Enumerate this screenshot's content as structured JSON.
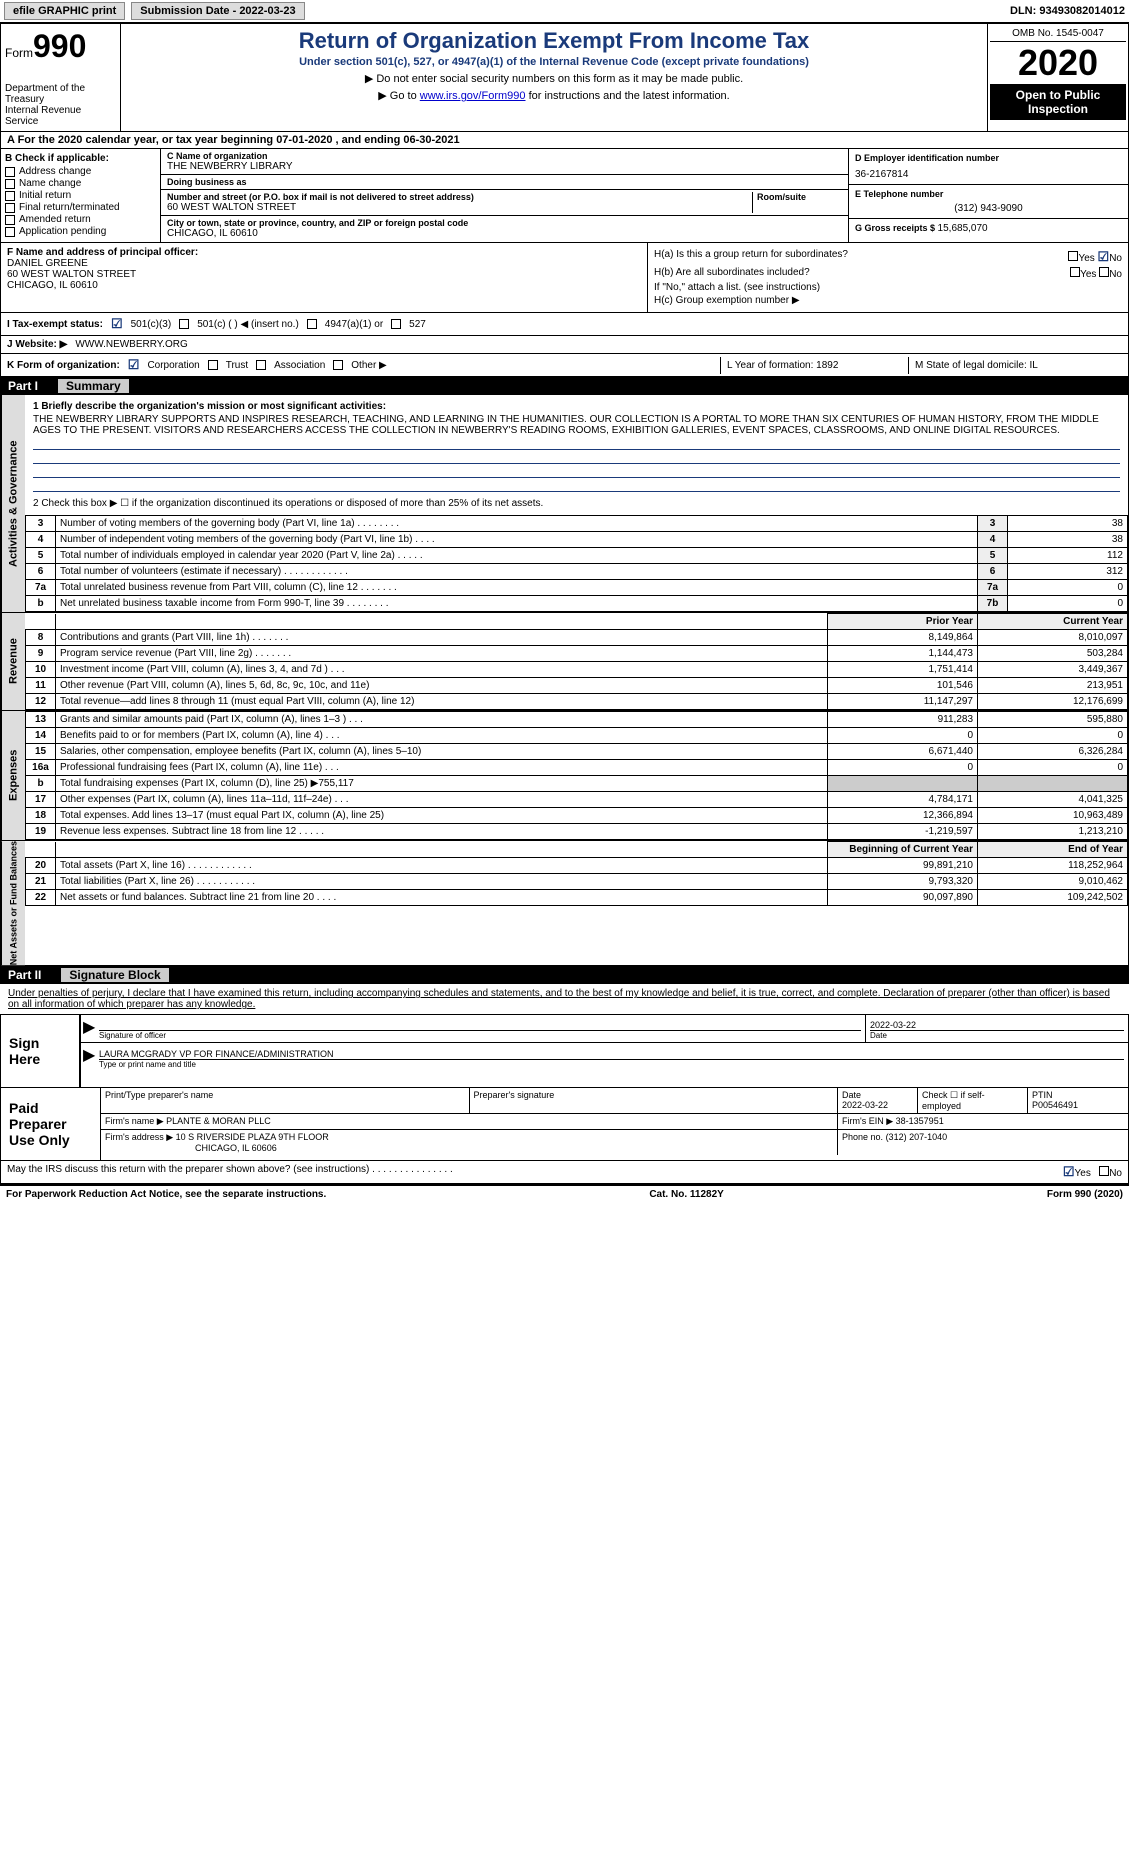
{
  "topbar": {
    "efile": "efile GRAPHIC print",
    "submit_label": "Submission Date - 2022-03-23",
    "dln_label": "DLN: 93493082014012"
  },
  "header": {
    "form_word": "Form",
    "form_num": "990",
    "dept1": "Department of the Treasury",
    "dept2": "Internal Revenue Service",
    "title": "Return of Organization Exempt From Income Tax",
    "subtitle": "Under section 501(c), 527, or 4947(a)(1) of the Internal Revenue Code (except private foundations)",
    "note1": "▶ Do not enter social security numbers on this form as it may be made public.",
    "note2_pre": "▶ Go to ",
    "note2_link": "www.irs.gov/Form990",
    "note2_post": " for instructions and the latest information.",
    "omb": "OMB No. 1545-0047",
    "year": "2020",
    "open1": "Open to Public",
    "open2": "Inspection"
  },
  "section_a": "A  For the 2020 calendar year, or tax year beginning 07-01-2020   , and ending 06-30-2021",
  "col_b": {
    "hdr": "B Check if applicable:",
    "opts": [
      "Address change",
      "Name change",
      "Initial return",
      "Final return/terminated",
      "Amended return",
      "Application pending"
    ]
  },
  "col_c": {
    "name_label": "C Name of organization",
    "name": "THE NEWBERRY LIBRARY",
    "dba_label": "Doing business as",
    "dba": "",
    "street_label": "Number and street (or P.O. box if mail is not delivered to street address)",
    "street": "60 WEST WALTON STREET",
    "suite_label": "Room/suite",
    "city_label": "City or town, state or province, country, and ZIP or foreign postal code",
    "city": "CHICAGO, IL  60610"
  },
  "col_right": {
    "d_label": "D Employer identification number",
    "d_val": "36-2167814",
    "e_label": "E Telephone number",
    "e_val": "(312) 943-9090",
    "g_label": "G Gross receipts $ ",
    "g_val": "15,685,070"
  },
  "fh": {
    "f_label": "F Name and address of principal officer:",
    "f_name": "DANIEL GREENE",
    "f_street": "60 WEST WALTON STREET",
    "f_city": "CHICAGO, IL  60610",
    "ha": "H(a)  Is this a group return for subordinates?",
    "hb": "H(b)  Are all subordinates included?",
    "hb_note": "If \"No,\" attach a list. (see instructions)",
    "hc": "H(c)  Group exemption number ▶"
  },
  "row_i": {
    "label": "I   Tax-exempt status:",
    "o1": "501(c)(3)",
    "o2": "501(c) (   ) ◀ (insert no.)",
    "o3": "4947(a)(1) or",
    "o4": "527"
  },
  "row_j": {
    "label": "J  Website: ▶",
    "val": "WWW.NEWBERRY.ORG"
  },
  "row_k": {
    "label": "K Form of organization:",
    "o1": "Corporation",
    "o2": "Trust",
    "o3": "Association",
    "o4": "Other ▶",
    "l": "L Year of formation: 1892",
    "m": "M State of legal domicile: IL"
  },
  "part1": {
    "num": "Part I",
    "title": "Summary"
  },
  "summary": {
    "q1_label": "1   Briefly describe the organization's mission or most significant activities:",
    "mission": "THE NEWBERRY LIBRARY SUPPORTS AND INSPIRES RESEARCH, TEACHING, AND LEARNING IN THE HUMANITIES. OUR COLLECTION IS A PORTAL TO MORE THAN SIX CENTURIES OF HUMAN HISTORY, FROM THE MIDDLE AGES TO THE PRESENT. VISITORS AND RESEARCHERS ACCESS THE COLLECTION IN NEWBERRY'S READING ROOMS, EXHIBITION GALLERIES, EVENT SPACES, CLASSROOMS, AND ONLINE DIGITAL RESOURCES.",
    "q2": "2   Check this box ▶ ☐  if the organization discontinued its operations or disposed of more than 25% of its net assets."
  },
  "gov_side": "Activities & Governance",
  "rev_side": "Revenue",
  "exp_side": "Expenses",
  "net_side": "Net Assets or Fund Balances",
  "gov_rows": [
    {
      "n": "3",
      "label": "Number of voting members of the governing body (Part VI, line 1a)   .   .   .   .   .   .   .   .",
      "k": "3",
      "v": "38"
    },
    {
      "n": "4",
      "label": "Number of independent voting members of the governing body (Part VI, line 1b)   .   .   .   .",
      "k": "4",
      "v": "38"
    },
    {
      "n": "5",
      "label": "Total number of individuals employed in calendar year 2020 (Part V, line 2a)   .   .   .   .   .",
      "k": "5",
      "v": "112"
    },
    {
      "n": "6",
      "label": "Total number of volunteers (estimate if necessary)   .   .   .   .   .   .   .   .   .   .   .   .",
      "k": "6",
      "v": "312"
    },
    {
      "n": "7a",
      "label": "Total unrelated business revenue from Part VIII, column (C), line 12   .   .   .   .   .   .   .",
      "k": "7a",
      "v": "0"
    },
    {
      "n": "b",
      "label": "Net unrelated business taxable income from Form 990-T, line 39   .   .   .   .   .   .   .   .",
      "k": "7b",
      "v": "0"
    }
  ],
  "rev_hdr": {
    "prior": "Prior Year",
    "current": "Current Year"
  },
  "rev_rows": [
    {
      "n": "8",
      "label": "Contributions and grants (Part VIII, line 1h)   .   .   .   .   .   .   .",
      "p": "8,149,864",
      "c": "8,010,097"
    },
    {
      "n": "9",
      "label": "Program service revenue (Part VIII, line 2g)   .   .   .   .   .   .   .",
      "p": "1,144,473",
      "c": "503,284"
    },
    {
      "n": "10",
      "label": "Investment income (Part VIII, column (A), lines 3, 4, and 7d )   .   .   .",
      "p": "1,751,414",
      "c": "3,449,367"
    },
    {
      "n": "11",
      "label": "Other revenue (Part VIII, column (A), lines 5, 6d, 8c, 9c, 10c, and 11e)",
      "p": "101,546",
      "c": "213,951"
    },
    {
      "n": "12",
      "label": "Total revenue—add lines 8 through 11 (must equal Part VIII, column (A), line 12)",
      "p": "11,147,297",
      "c": "12,176,699"
    }
  ],
  "exp_rows": [
    {
      "n": "13",
      "label": "Grants and similar amounts paid (Part IX, column (A), lines 1–3 )   .   .   .",
      "p": "911,283",
      "c": "595,880"
    },
    {
      "n": "14",
      "label": "Benefits paid to or for members (Part IX, column (A), line 4)   .   .   .",
      "p": "0",
      "c": "0"
    },
    {
      "n": "15",
      "label": "Salaries, other compensation, employee benefits (Part IX, column (A), lines 5–10)",
      "p": "6,671,440",
      "c": "6,326,284"
    },
    {
      "n": "16a",
      "label": "Professional fundraising fees (Part IX, column (A), line 11e)   .   .   .",
      "p": "0",
      "c": "0"
    },
    {
      "n": "b",
      "label": "Total fundraising expenses (Part IX, column (D), line 25) ▶755,117",
      "p": "",
      "c": "",
      "shaded": true
    },
    {
      "n": "17",
      "label": "Other expenses (Part IX, column (A), lines 11a–11d, 11f–24e)   .   .   .",
      "p": "4,784,171",
      "c": "4,041,325"
    },
    {
      "n": "18",
      "label": "Total expenses. Add lines 13–17 (must equal Part IX, column (A), line 25)",
      "p": "12,366,894",
      "c": "10,963,489"
    },
    {
      "n": "19",
      "label": "Revenue less expenses. Subtract line 18 from line 12   .   .   .   .   .",
      "p": "-1,219,597",
      "c": "1,213,210"
    }
  ],
  "net_hdr": {
    "prior": "Beginning of Current Year",
    "current": "End of Year"
  },
  "net_rows": [
    {
      "n": "20",
      "label": "Total assets (Part X, line 16)   .   .   .   .   .   .   .   .   .   .   .   .",
      "p": "99,891,210",
      "c": "118,252,964"
    },
    {
      "n": "21",
      "label": "Total liabilities (Part X, line 26)   .   .   .   .   .   .   .   .   .   .   .",
      "p": "9,793,320",
      "c": "9,010,462"
    },
    {
      "n": "22",
      "label": "Net assets or fund balances. Subtract line 21 from line 20   .   .   .   .",
      "p": "90,097,890",
      "c": "109,242,502"
    }
  ],
  "part2": {
    "num": "Part II",
    "title": "Signature Block"
  },
  "sig_text": "Under penalties of perjury, I declare that I have examined this return, including accompanying schedules and statements, and to the best of my knowledge and belief, it is true, correct, and complete. Declaration of preparer (other than officer) is based on all information of which preparer has any knowledge.",
  "sign": {
    "here": "Sign Here",
    "sig_label": "Signature of officer",
    "date_val": "2022-03-22",
    "date_label": "Date",
    "name_val": "LAURA MCGRADY  VP FOR FINANCE/ADMINISTRATION",
    "name_label": "Type or print name and title"
  },
  "prep": {
    "title": "Paid Preparer Use Only",
    "h1": "Print/Type preparer's name",
    "h2": "Preparer's signature",
    "h3": "Date",
    "h4": "Check ☐  if self-employed",
    "h5": "PTIN",
    "date": "2022-03-22",
    "ptin": "P00546491",
    "firm_label": "Firm's name     ▶",
    "firm": "PLANTE & MORAN PLLC",
    "ein_label": "Firm's EIN ▶",
    "ein": "38-1357951",
    "addr_label": "Firm's address ▶",
    "addr1": "10 S RIVERSIDE PLAZA 9TH FLOOR",
    "addr2": "CHICAGO, IL  60606",
    "phone_label": "Phone no.",
    "phone": "(312) 207-1040"
  },
  "discuss": {
    "q": "May the IRS discuss this return with the preparer shown above? (see instructions)   .   .   .   .   .   .   .   .   .   .   .   .   .   .   .",
    "yes": "Yes",
    "no": "No"
  },
  "footer": {
    "left": "For Paperwork Reduction Act Notice, see the separate instructions.",
    "mid": "Cat. No. 11282Y",
    "right": "Form 990 (2020)"
  }
}
